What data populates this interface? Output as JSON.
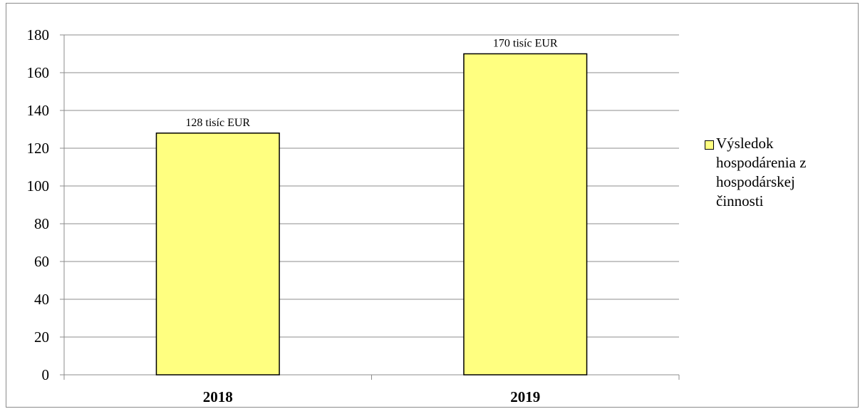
{
  "chart_data": {
    "type": "bar",
    "title": "",
    "xlabel": "",
    "ylabel": "",
    "categories": [
      "2018",
      "2019"
    ],
    "series": [
      {
        "name": "Výsledok hospodárenia z hospodárskej činnosti",
        "values": [
          128,
          170
        ],
        "data_labels": [
          "128 tisíc EUR",
          "170 tisíc EUR"
        ],
        "color": "#ffff80"
      }
    ],
    "ylim": [
      0,
      180
    ],
    "yticks": [
      0,
      20,
      40,
      60,
      80,
      100,
      120,
      140,
      160,
      180
    ],
    "grid": true,
    "legend": "right"
  }
}
